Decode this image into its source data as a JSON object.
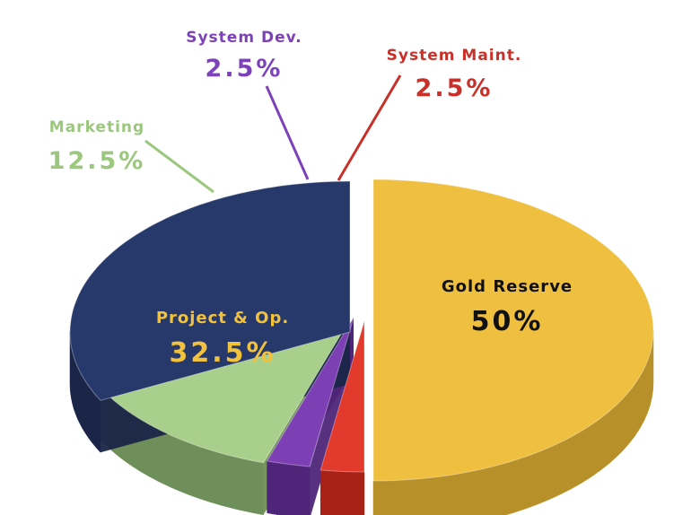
{
  "chart_data": {
    "type": "pie",
    "title": "",
    "style": "3d-exploded",
    "slices": [
      {
        "label": "Gold Reserve",
        "value": 50,
        "value_label": "50%",
        "color": "#efc03f",
        "side_color": "#b8902a",
        "text_color": "#111111"
      },
      {
        "label": "System Maint.",
        "value": 2.5,
        "value_label": "2.5%",
        "color": "#e23a2c",
        "side_color": "#a82218",
        "text_color": "#c8312a"
      },
      {
        "label": "System Dev.",
        "value": 2.5,
        "value_label": "2.5%",
        "color": "#7c3fb4",
        "side_color": "#4e2578",
        "text_color": "#7d42b9"
      },
      {
        "label": "Marketing",
        "value": 12.5,
        "value_label": "12.5%",
        "color": "#a9cf8c",
        "side_color": "#6f8f5a",
        "text_color": "#9cc77e"
      },
      {
        "label": "Project & Op.",
        "value": 32.5,
        "value_label": "32.5%",
        "color": "#27386b",
        "side_color": "#1a2548",
        "text_color": "#f3c23c"
      }
    ]
  }
}
